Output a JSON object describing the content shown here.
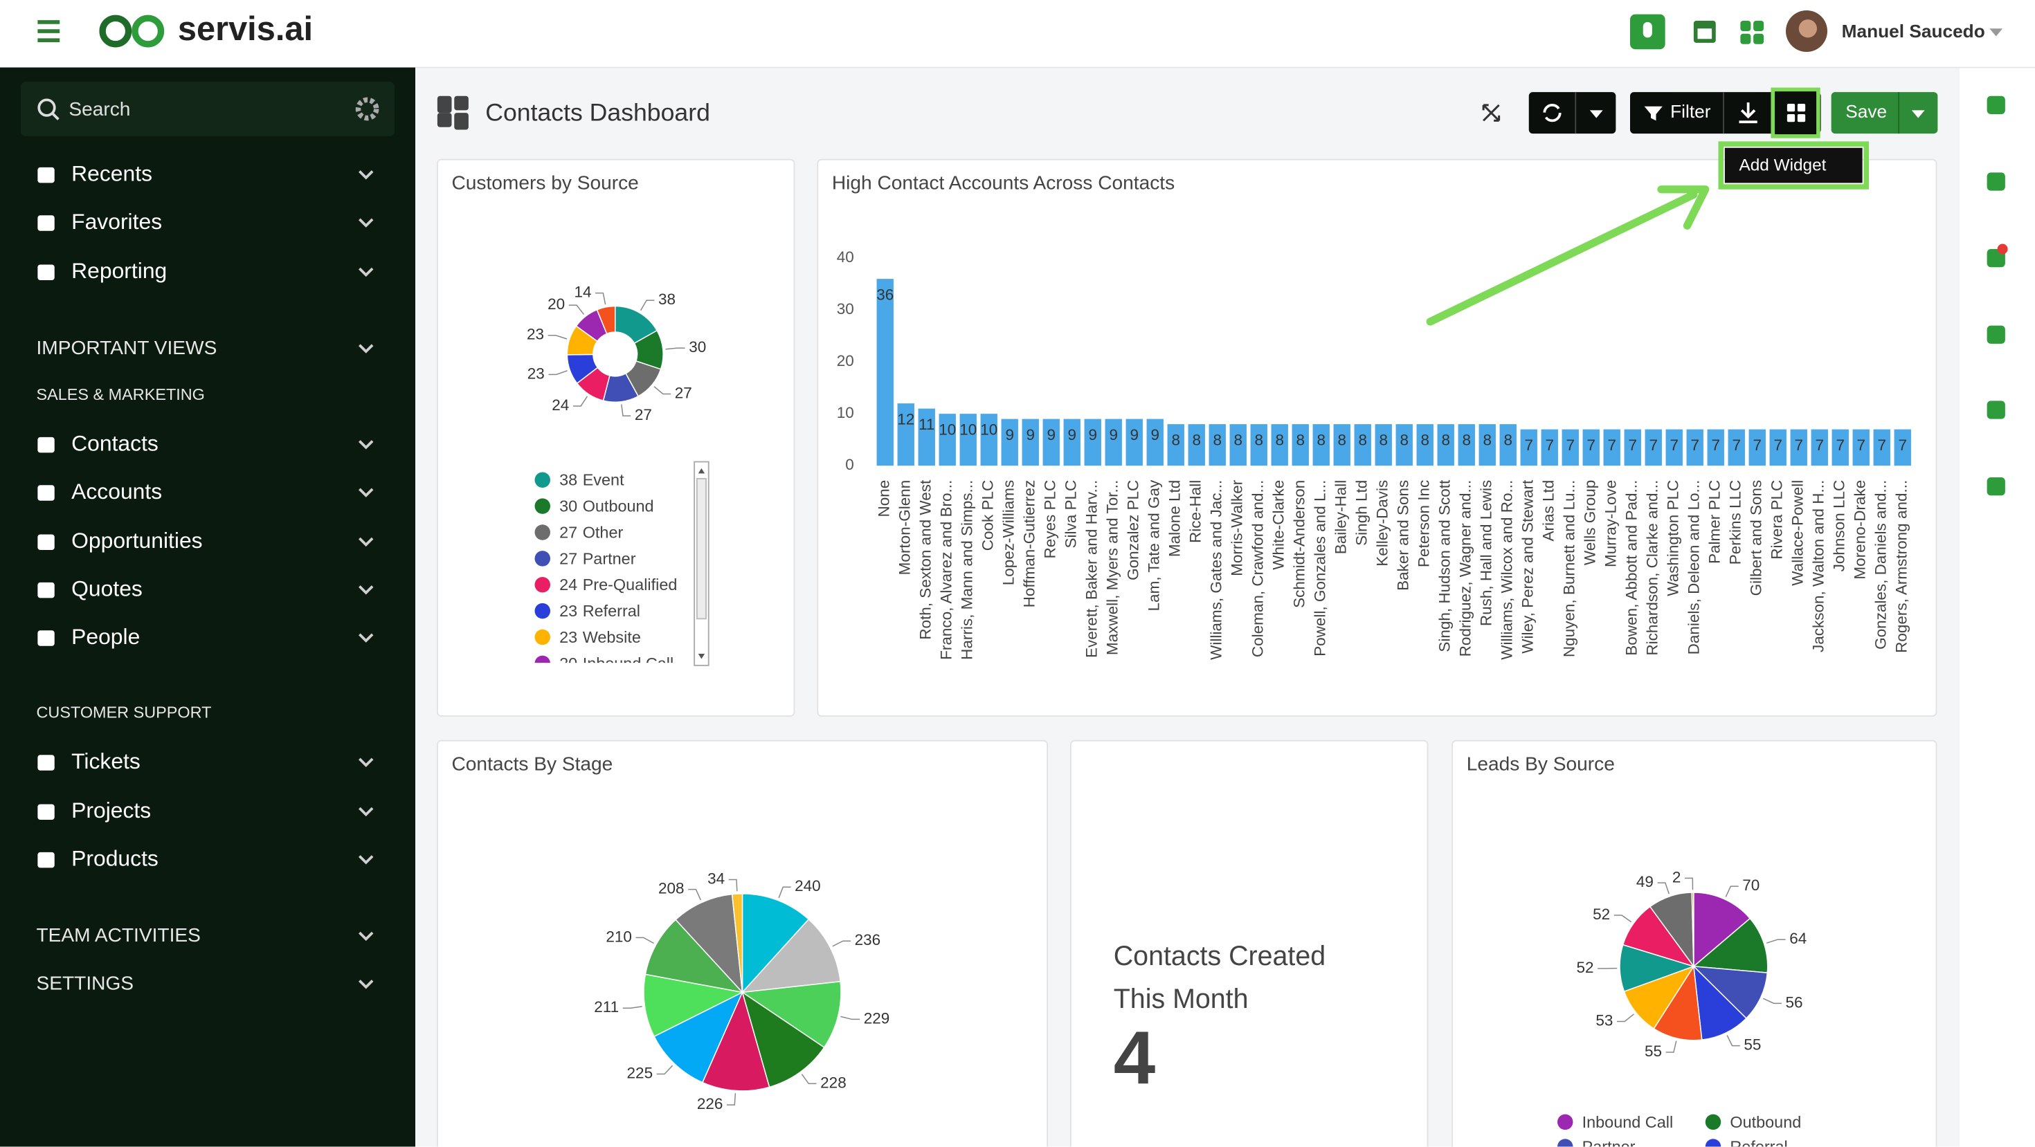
{
  "header": {
    "logo": "servis.ai",
    "user": "Manuel Saucedo"
  },
  "sidebar": {
    "search": "Search",
    "menu": [
      "Recents",
      "Favorites",
      "Reporting"
    ],
    "important_views": "IMPORTANT VIEWS",
    "sales_marketing": {
      "heading": "SALES & MARKETING",
      "items": [
        "Contacts",
        "Accounts",
        "Opportunities",
        "Quotes",
        "People"
      ]
    },
    "customer_support": {
      "heading": "CUSTOMER SUPPORT",
      "items": [
        "Tickets",
        "Projects",
        "Products"
      ]
    },
    "team_activities": "TEAM ACTIVITIES",
    "settings": "SETTINGS"
  },
  "dashboard": {
    "title": "Contacts Dashboard",
    "filter": "Filter",
    "save": "Save",
    "tooltip": "Add Widget",
    "widgets": [
      {
        "type": "donut",
        "title": "Customers by Source",
        "categories": [
          "Event",
          "Outbound",
          "Other",
          "Partner",
          "Pre-Qualified",
          "Referral",
          "Website",
          "Inbound Call",
          null
        ],
        "values": [
          38,
          30,
          27,
          27,
          24,
          23,
          23,
          20,
          14
        ],
        "colors": [
          "#11998e",
          "#1b7a2a",
          "#6d6d6d",
          "#3f4fb5",
          "#e91e63",
          "#2a3fd9",
          "#ffb300",
          "#9c27b0",
          "#f4511e"
        ]
      },
      {
        "type": "bar",
        "title": "High Contact Accounts Across Contacts",
        "categories": [
          "None",
          "Morton-Glenn",
          "Roth, Sexton and West",
          "Franco, Alvarez and Bro...",
          "Harris, Mann and Simps...",
          "Cook PLC",
          "Lopez-Williams",
          "Hoffman-Gutierrez",
          "Reyes PLC",
          "Silva PLC",
          "Everett, Baker and Harv...",
          "Maxwell, Myers and Tor...",
          "Gonzalez PLC",
          "Lam, Tate and Gay",
          "Malone Ltd",
          "Rice-Hall",
          "Williams, Gates and Jac...",
          "Morris-Walker",
          "Coleman, Crawford and...",
          "White-Clarke",
          "Schmidt-Anderson",
          "Powell, Gonzales and L...",
          "Bailey-Hall",
          "Singh Ltd",
          "Kelley-Davis",
          "Baker and Sons",
          "Peterson Inc",
          "Singh, Hudson and Scott",
          "Rodriguez, Wagner and...",
          "Rush, Hall and Lewis",
          "Williams, Wilcox and Ro...",
          "Wiley, Perez and Stewart",
          "Arias Ltd",
          "Nguyen, Burnett and Lu...",
          "Wells Group",
          "Murray-Love",
          "Bowen, Abbott and Pad...",
          "Richardson, Clarke and...",
          "Washington PLC",
          "Daniels, Deleon and Lo...",
          "Palmer PLC",
          "Perkins LLC",
          "Gilbert and Sons",
          "Rivera PLC",
          "Wallace-Powell",
          "Jackson, Walton and H...",
          "Johnson LLC",
          "Moreno-Drake",
          "Gonzales, Daniels and...",
          "Rogers, Armstrong and..."
        ],
        "values": [
          36,
          12,
          11,
          10,
          10,
          10,
          9,
          9,
          9,
          9,
          9,
          9,
          9,
          9,
          8,
          8,
          8,
          8,
          8,
          8,
          8,
          8,
          8,
          8,
          8,
          8,
          8,
          8,
          8,
          8,
          8,
          7,
          7,
          7,
          7,
          7,
          7,
          7,
          7,
          7,
          7,
          7,
          7,
          7,
          7,
          7,
          7,
          7,
          7,
          7
        ],
        "color": "#4aa8e8",
        "ylim": [
          0,
          40
        ],
        "yticks": [
          0,
          10,
          20,
          30,
          40
        ]
      },
      {
        "type": "pie",
        "title": "Contacts By Stage",
        "values": [
          240,
          236,
          229,
          228,
          226,
          225,
          211,
          210,
          208,
          34
        ],
        "colors": [
          "#00bcd4",
          "#bdbdbd",
          "#4cd05a",
          "#1e7b1e",
          "#d81b60",
          "#03a9f4",
          "#4ee05a",
          "#4caf50",
          "#7a7a7a",
          "#fbc02d"
        ]
      },
      {
        "type": "kpi",
        "title": "Contacts Created This Month",
        "value": 4
      },
      {
        "type": "pie",
        "title": "Leads By Source",
        "categories": [
          "Inbound Call",
          "Outbound",
          "Partner",
          "Referral",
          null,
          null,
          null,
          null,
          null,
          null
        ],
        "values": [
          70,
          64,
          56,
          55,
          55,
          53,
          52,
          52,
          49,
          2
        ],
        "colors": [
          "#9c27b0",
          "#1b7a2a",
          "#3f4fb5",
          "#2a3fd9",
          "#f4511e",
          "#ffb300",
          "#11998e",
          "#e91e63",
          "#6d6d6d",
          "#c9b037"
        ]
      }
    ]
  }
}
